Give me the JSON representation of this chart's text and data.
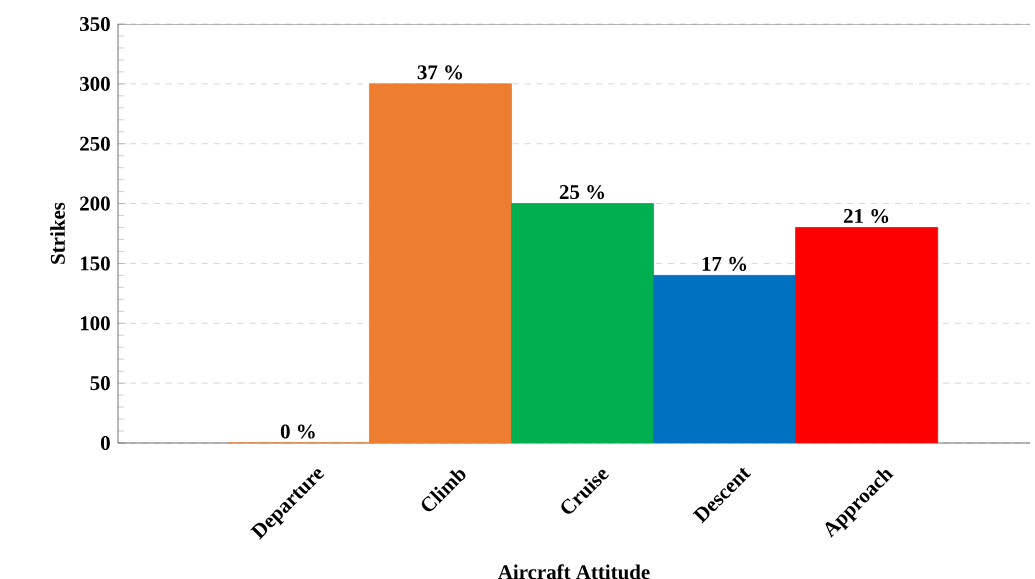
{
  "chart_data": {
    "type": "bar",
    "xlabel": "Aircraft Attitude",
    "ylabel": "Strikes",
    "categories": [
      "Departure",
      "Climb",
      "Cruise",
      "Descent",
      "Approach"
    ],
    "values": [
      0,
      300,
      200,
      140,
      180
    ],
    "colors": [
      "#ed7d31",
      "#ed7d31",
      "#00b050",
      "#0070c0",
      "#ff0000"
    ],
    "annotations": [
      {
        "text": "0 %",
        "x": "Departure",
        "y": 0
      },
      {
        "text": "37 %",
        "x": "Climb",
        "y": 300
      },
      {
        "text": "25 %",
        "x": "Cruise",
        "y": 200
      },
      {
        "text": "17 %",
        "x": "Descent",
        "y": 140
      },
      {
        "text": "21 %",
        "x": "Approach",
        "y": 180
      }
    ],
    "ylim": [
      0,
      350
    ],
    "yticks": [
      0,
      50,
      100,
      150,
      200,
      250,
      300,
      350
    ],
    "grid": "y"
  }
}
